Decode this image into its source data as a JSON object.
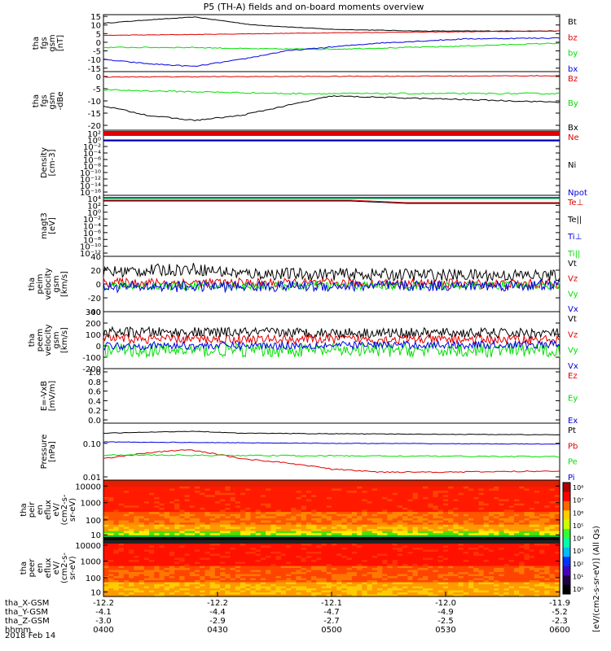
{
  "title": "P5 (TH-A) fields and on-board moments overview",
  "date_label": "2018 Feb 14",
  "colorbar": {
    "label": "[eV/(cm2-s-sr-eV)] (All Qs)",
    "ticks": [
      "10⁸",
      "10⁷",
      "10⁶",
      "10⁵",
      "10⁴",
      "10³",
      "10²",
      "10¹",
      "10⁰"
    ]
  },
  "time_axis": {
    "row_labels": [
      "tha_X-GSM",
      "tha_Y-GSM",
      "tha_Z-GSM",
      "hhmm"
    ],
    "columns": [
      {
        "x": "-12.2",
        "y": "-4.1",
        "z": "-3.0",
        "hhmm": "0400"
      },
      {
        "x": "-12.2",
        "y": "-4.4",
        "z": "-2.9",
        "hhmm": "0430"
      },
      {
        "x": "-12.1",
        "y": "-4.7",
        "z": "-2.7",
        "hhmm": "0500"
      },
      {
        "x": "-12.0",
        "y": "-4.9",
        "z": "-2.5",
        "hhmm": "0530"
      },
      {
        "x": "-11.9",
        "y": "-5.2",
        "z": "-2.3",
        "hhmm": "0600"
      }
    ]
  },
  "colors": {
    "black": "#000000",
    "red": "#e00000",
    "green": "#00e000",
    "blue": "#0000e0"
  },
  "chart_data": [
    {
      "type": "line",
      "ylabel": [
        "tha",
        "fgs",
        "gsm",
        "[nT]"
      ],
      "ylim": [
        -17,
        16
      ],
      "yticks": [
        15,
        10,
        5,
        0,
        -5,
        -10,
        -15
      ],
      "series": [
        {
          "name": "Bt",
          "color": "#000000",
          "noise": 0.15,
          "x": [
            0,
            0.1,
            0.2,
            0.33,
            0.5,
            0.7,
            0.85,
            1
          ],
          "values": [
            11,
            13,
            14.6,
            10,
            7.5,
            6.5,
            6.5,
            6.5
          ]
        },
        {
          "name": "bz",
          "color": "#e00000",
          "noise": 0.15,
          "x": [
            0,
            0.2,
            0.5,
            1
          ],
          "values": [
            4,
            4.5,
            5.5,
            6.5
          ]
        },
        {
          "name": "by",
          "color": "#00e000",
          "noise": 0.3,
          "x": [
            0,
            0.2,
            0.33,
            0.5,
            0.75,
            1
          ],
          "values": [
            -3,
            -3,
            -3.8,
            -4,
            -2.5,
            -0.5
          ]
        },
        {
          "name": "bx",
          "color": "#0000e0",
          "noise": 0.3,
          "x": [
            0,
            0.1,
            0.2,
            0.3,
            0.4,
            0.6,
            0.8,
            1
          ],
          "values": [
            -10,
            -12.5,
            -14,
            -10,
            -5,
            -0.5,
            2,
            2.5
          ]
        }
      ]
    },
    {
      "type": "line",
      "ylabel": [
        "tha",
        "fgs",
        "gsm",
        "-dBe"
      ],
      "ylim": [
        -22,
        2
      ],
      "yticks": [
        0,
        -5,
        -10,
        -15,
        -20
      ],
      "series": [
        {
          "name": "Bz",
          "color": "#e00000",
          "noise": 0.15,
          "x": [
            0,
            1
          ],
          "values": [
            -0.2,
            0.3
          ]
        },
        {
          "name": "By",
          "color": "#00e000",
          "noise": 0.3,
          "x": [
            0,
            0.4,
            1
          ],
          "values": [
            -5.5,
            -7,
            -7
          ]
        },
        {
          "name": "Bx",
          "color": "#000000",
          "noise": 0.25,
          "x": [
            0,
            0.1,
            0.2,
            0.3,
            0.5,
            0.7,
            1
          ],
          "values": [
            -12,
            -16,
            -18,
            -16,
            -8,
            -9,
            -10.5
          ]
        }
      ]
    },
    {
      "type": "line",
      "ylabel": [
        "Density",
        "[cm-3]"
      ],
      "yticks": [
        "10²",
        "10⁰",
        "10⁻²",
        "10⁻⁴",
        "10⁻⁶",
        "10⁻⁸",
        "10⁻¹⁰",
        "10⁻¹²",
        "10⁻¹⁴",
        "10⁻¹⁶"
      ],
      "series": [
        {
          "name": "Ne",
          "color": "#e00000"
        },
        {
          "name": "Ni",
          "color": "#000000"
        },
        {
          "name": "Npot",
          "color": "#0000e0"
        }
      ]
    },
    {
      "type": "line",
      "ylabel": [
        "magt3",
        "[eV]"
      ],
      "yticks": [
        "10⁴",
        "10²",
        "10⁰",
        "10⁻²",
        "10⁻⁴",
        "10⁻⁶",
        "10⁻⁸",
        "10⁻¹⁰",
        "10⁻¹²"
      ],
      "series": [
        {
          "name": "Te⊥",
          "color": "#e00000"
        },
        {
          "name": "Te||",
          "color": "#000000"
        },
        {
          "name": "Ti⊥",
          "color": "#0000e0"
        },
        {
          "name": "Ti||",
          "color": "#00e000"
        }
      ]
    },
    {
      "type": "line",
      "ylabel": [
        "tha",
        "peim",
        "velocity",
        "gsm",
        "[km/s]"
      ],
      "ylim": [
        -40,
        40
      ],
      "yticks": [
        40,
        20,
        0,
        -20,
        -40
      ],
      "series": [
        {
          "name": "Vt",
          "color": "#000000",
          "noise": 9,
          "x": [
            0,
            0.2,
            0.3,
            1
          ],
          "values": [
            17,
            22,
            15,
            12
          ]
        },
        {
          "name": "Vz",
          "color": "#e00000",
          "noise": 7,
          "x": [
            0,
            1
          ],
          "values": [
            2,
            0
          ]
        },
        {
          "name": "Vy",
          "color": "#00e000",
          "noise": 6,
          "x": [
            0,
            1
          ],
          "values": [
            -3,
            -2
          ]
        },
        {
          "name": "Vx",
          "color": "#0000e0",
          "noise": 8,
          "x": [
            0,
            1
          ],
          "values": [
            -4,
            -2
          ]
        }
      ]
    },
    {
      "type": "line",
      "ylabel": [
        "tha",
        "peem",
        "velocity",
        "gsm",
        "[km/s]"
      ],
      "ylim": [
        -200,
        300
      ],
      "yticks": [
        300,
        200,
        100,
        0,
        -100,
        -200
      ],
      "series": [
        {
          "name": "Vt",
          "color": "#000000",
          "noise": 45,
          "x": [
            0,
            1
          ],
          "values": [
            120,
            110
          ]
        },
        {
          "name": "Vz",
          "color": "#e00000",
          "noise": 40,
          "x": [
            0,
            1
          ],
          "values": [
            60,
            55
          ]
        },
        {
          "name": "Vy",
          "color": "#00e000",
          "noise": 60,
          "x": [
            0,
            1
          ],
          "values": [
            -40,
            -40
          ]
        },
        {
          "name": "Vx",
          "color": "#0000e0",
          "noise": 35,
          "x": [
            0,
            1
          ],
          "values": [
            0,
            10
          ]
        }
      ]
    },
    {
      "type": "line",
      "ylabel": [
        "E=-VxB",
        "[mV/m]"
      ],
      "ylim": [
        0,
        1
      ],
      "yticks": [
        "1.0",
        "0.8",
        "0.6",
        "0.4",
        "0.2",
        "0.0"
      ],
      "series": [
        {
          "name": "Ez",
          "color": "#e00000"
        },
        {
          "name": "Ey",
          "color": "#00e000"
        },
        {
          "name": "Ex",
          "color": "#0000e0"
        }
      ]
    },
    {
      "type": "line",
      "log": true,
      "ylabel": [
        "Pressure",
        "[nPa]"
      ],
      "ylim": [
        0.008,
        0.4
      ],
      "yticks": [
        "0.10",
        "0.01"
      ],
      "series": [
        {
          "name": "Pt",
          "color": "#000000",
          "noise": 0.01,
          "x": [
            0,
            0.2,
            0.3,
            0.6,
            1
          ],
          "values": [
            0.2,
            0.23,
            0.2,
            0.19,
            0.18
          ]
        },
        {
          "name": "Pb",
          "color": "#e00000",
          "noise": 0.02,
          "x": [
            0,
            0.18,
            0.3,
            0.5,
            0.6,
            0.8,
            1
          ],
          "values": [
            0.035,
            0.065,
            0.035,
            0.017,
            0.014,
            0.014,
            0.015
          ]
        },
        {
          "name": "Pe",
          "color": "#00e000",
          "noise": 0.02,
          "x": [
            0,
            1
          ],
          "values": [
            0.045,
            0.04
          ]
        },
        {
          "name": "Pi",
          "color": "#0000e0",
          "noise": 0.01,
          "x": [
            0,
            0.5,
            1
          ],
          "values": [
            0.11,
            0.1,
            0.095
          ]
        }
      ]
    },
    {
      "type": "heatmap",
      "ylabel": [
        "tha",
        "peir",
        "en",
        "eflux",
        "eV/",
        "(cm2-s-",
        "sr-eV)"
      ],
      "yticks": [
        "10000",
        "1000",
        "100",
        "10"
      ]
    },
    {
      "type": "heatmap",
      "ylabel": [
        "tha",
        "peer",
        "en",
        "eflux",
        "eV/",
        "(cm2-s-",
        "sr-eV)"
      ],
      "yticks": [
        "10000",
        "1000",
        "100",
        "10"
      ]
    }
  ]
}
